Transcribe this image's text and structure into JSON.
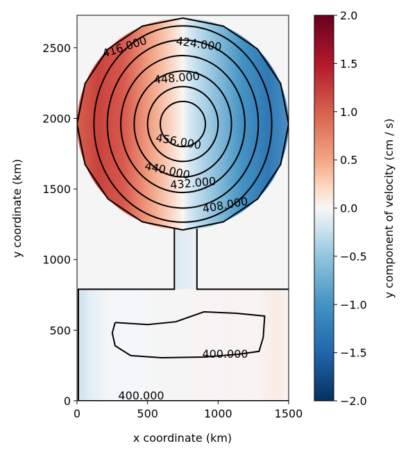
{
  "chart_data": {
    "type": "heatmap",
    "title": "",
    "xlabel": "x coordinate (km)",
    "ylabel": "y coordinate (km)",
    "xlim": [
      0,
      1500
    ],
    "ylim": [
      0,
      2730
    ],
    "x_ticks": [
      0,
      500,
      1000,
      1500
    ],
    "y_ticks": [
      0,
      500,
      1000,
      1500,
      2000,
      2500
    ],
    "x_tick_labels": [
      "0",
      "500",
      "1000",
      "1500"
    ],
    "y_tick_labels": [
      "0",
      "500",
      "1000",
      "1500",
      "2000",
      "2500"
    ],
    "colorbar": {
      "label": "y component of velocity (cm / s)",
      "range": [
        -2.0,
        2.0
      ],
      "colormap": "RdBu_r",
      "ticks": [
        2.0,
        1.5,
        1.0,
        0.5,
        0.0,
        -0.5,
        -1.0,
        -1.5,
        -2.0
      ],
      "tick_labels": [
        "2.0",
        "1.5",
        "1.0",
        "0.5",
        "0.0",
        "−0.5",
        "−1.0",
        "−1.5",
        "−2.0"
      ]
    },
    "domain": {
      "basin_center": [
        750,
        1960
      ],
      "basin_radius": 750,
      "channel_x": [
        690,
        850
      ],
      "channel_y": [
        790,
        1220
      ],
      "lower_box": {
        "x": [
          0,
          1500
        ],
        "y": [
          0,
          790
        ]
      }
    },
    "contour_lines": [
      {
        "value": 456,
        "center": [
          750,
          1960
        ],
        "rx": 160,
        "ry": 160
      },
      {
        "value": 448,
        "center": [
          750,
          1960
        ],
        "rx": 250,
        "ry": 265
      },
      {
        "value": 440,
        "center": [
          750,
          1960
        ],
        "rx": 345,
        "ry": 375
      },
      {
        "value": 432,
        "center": [
          750,
          1960
        ],
        "rx": 440,
        "ry": 485
      },
      {
        "value": 424,
        "center": [
          750,
          1960
        ],
        "rx": 535,
        "ry": 595
      },
      {
        "value": 416,
        "center": [
          750,
          1960
        ],
        "rx": 630,
        "ry": 695
      }
    ],
    "contour_labels": [
      {
        "text": "416.000",
        "x": 345,
        "y": 2480,
        "angle": -18
      },
      {
        "text": "424.000",
        "x": 860,
        "y": 2500,
        "angle": 8
      },
      {
        "text": "448.000",
        "x": 710,
        "y": 2260,
        "angle": -5
      },
      {
        "text": "456.000",
        "x": 715,
        "y": 1810,
        "angle": 10
      },
      {
        "text": "440.000",
        "x": 635,
        "y": 1605,
        "angle": 12
      },
      {
        "text": "432.000",
        "x": 825,
        "y": 1515,
        "angle": -5
      },
      {
        "text": "408.000",
        "x": 1055,
        "y": 1360,
        "angle": -10
      },
      {
        "text": "400.000",
        "x": 1050,
        "y": 305,
        "angle": 0
      },
      {
        "text": "400.000",
        "x": 455,
        "y": 10,
        "angle": 0
      }
    ],
    "velocity_field": {
      "description_of_values": "y-velocity positive on west side of basin, negative on east side",
      "basin_peak": 1.5,
      "lower_box_west_edge": -0.3,
      "lower_box_east_edge": 0.1,
      "channel": -0.1
    }
  }
}
